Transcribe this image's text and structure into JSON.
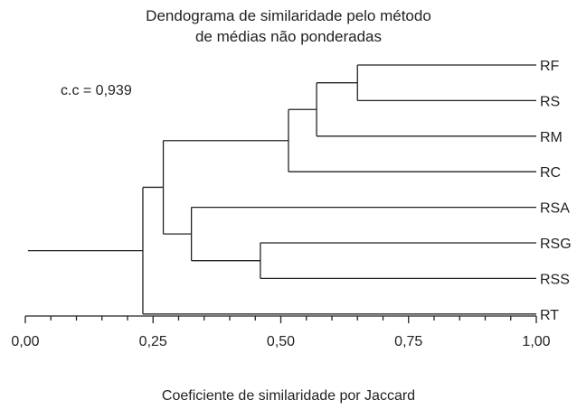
{
  "chart_data": {
    "type": "dendrogram",
    "title": "Dendograma de similaridade pelo método",
    "subtitle": "de médias não ponderadas",
    "annotation": "c.c = 0,939",
    "xlabel": "Coeficiente de similaridade por Jaccard",
    "xlim": [
      0,
      1
    ],
    "xticks": [
      {
        "value": 0.0,
        "label": "0,00"
      },
      {
        "value": 0.25,
        "label": "0,25"
      },
      {
        "value": 0.5,
        "label": "0,50"
      },
      {
        "value": 0.75,
        "label": "0,75"
      },
      {
        "value": 1.0,
        "label": "1,00"
      }
    ],
    "leaves": [
      "RF",
      "RS",
      "RM",
      "RC",
      "RSA",
      "RSG",
      "RSS",
      "RT"
    ],
    "merges": [
      {
        "id": "A",
        "children": [
          "RF",
          "RS"
        ],
        "similarity": 0.65
      },
      {
        "id": "B",
        "children": [
          "A",
          "RM"
        ],
        "similarity": 0.57
      },
      {
        "id": "C",
        "children": [
          "B",
          "RC"
        ],
        "similarity": 0.515
      },
      {
        "id": "D",
        "children": [
          "RSG",
          "RSS"
        ],
        "similarity": 0.46
      },
      {
        "id": "E",
        "children": [
          "RSA",
          "D"
        ],
        "similarity": 0.325
      },
      {
        "id": "F",
        "children": [
          "C",
          "E"
        ],
        "similarity": 0.27
      },
      {
        "id": "G",
        "children": [
          "F",
          "RT"
        ],
        "similarity": 0.23
      },
      {
        "id": "ROOT",
        "children": [
          "G"
        ],
        "similarity": 0.005
      }
    ]
  }
}
